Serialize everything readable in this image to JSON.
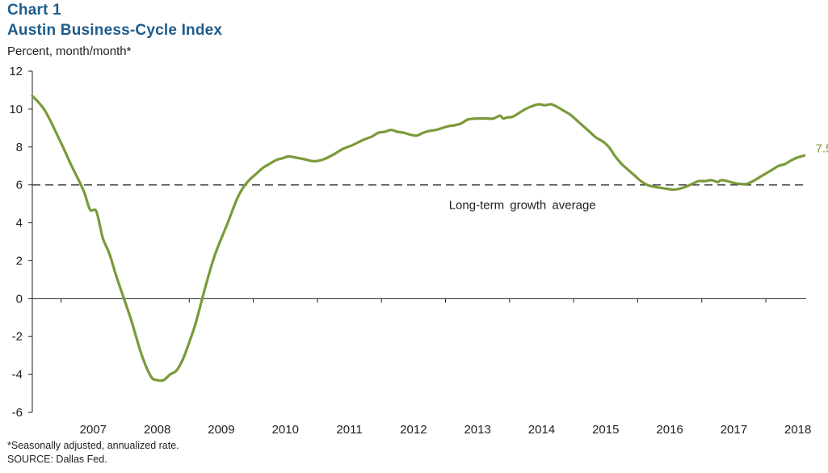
{
  "header": {
    "label": "Chart 1",
    "title": "Austin Business-Cycle Index",
    "units": "Percent, month/month*"
  },
  "footer": {
    "note": "*Seasonally adjusted, annualized rate.",
    "source": "SOURCE:  Dallas Fed."
  },
  "colors": {
    "series": "#7a9a3a",
    "reference": "#404040",
    "title": "#1f5c8b"
  },
  "chart_data": {
    "type": "line",
    "title": "Austin Business-Cycle Index",
    "ylabel": "Percent, month/month*",
    "xlabel": "",
    "ylim": [
      -6,
      12
    ],
    "xlim": [
      2006.55,
      2018.63
    ],
    "yticks": [
      -6,
      -4,
      -2,
      0,
      2,
      4,
      6,
      8,
      10,
      12
    ],
    "year_labels": [
      "2007",
      "2008",
      "2009",
      "2010",
      "2011",
      "2012",
      "2013",
      "2014",
      "2015",
      "2016",
      "2017",
      "2018"
    ],
    "grid": false,
    "series": [
      {
        "name": "Austin Business-Cycle Index",
        "end_label": "7.5",
        "x": [
          2006.55,
          2006.75,
          2007.0,
          2007.15,
          2007.35,
          2007.45,
          2007.55,
          2007.65,
          2007.75,
          2007.85,
          2007.95,
          2008.1,
          2008.25,
          2008.4,
          2008.5,
          2008.6,
          2008.7,
          2008.8,
          2008.9,
          2009.0,
          2009.1,
          2009.25,
          2009.4,
          2009.6,
          2009.75,
          2009.85,
          2009.95,
          2010.05,
          2010.15,
          2010.25,
          2010.35,
          2010.45,
          2010.55,
          2010.65,
          2010.8,
          2010.95,
          2011.1,
          2011.25,
          2011.4,
          2011.55,
          2011.7,
          2011.85,
          2011.95,
          2012.05,
          2012.15,
          2012.25,
          2012.35,
          2012.45,
          2012.55,
          2012.65,
          2012.75,
          2012.85,
          2012.95,
          2013.05,
          2013.15,
          2013.25,
          2013.35,
          2013.5,
          2013.65,
          2013.75,
          2013.85,
          2013.9,
          2013.95,
          2014.05,
          2014.15,
          2014.25,
          2014.35,
          2014.45,
          2014.55,
          2014.65,
          2014.75,
          2014.85,
          2014.95,
          2015.05,
          2015.15,
          2015.25,
          2015.35,
          2015.45,
          2015.55,
          2015.65,
          2015.75,
          2015.85,
          2015.95,
          2016.05,
          2016.15,
          2016.25,
          2016.35,
          2016.45,
          2016.55,
          2016.65,
          2016.75,
          2016.85,
          2016.95,
          2017.05,
          2017.15,
          2017.25,
          2017.3,
          2017.4,
          2017.5,
          2017.6,
          2017.7,
          2017.8,
          2017.9,
          2018.0,
          2018.1,
          2018.2,
          2018.3,
          2018.4,
          2018.5,
          2018.6
        ],
        "values": [
          10.7,
          9.9,
          8.2,
          7.1,
          5.7,
          4.7,
          4.6,
          3.2,
          2.4,
          1.3,
          0.3,
          -1.2,
          -2.9,
          -4.1,
          -4.3,
          -4.3,
          -4.0,
          -3.8,
          -3.2,
          -2.3,
          -1.3,
          0.6,
          2.3,
          4.0,
          5.3,
          5.9,
          6.3,
          6.6,
          6.9,
          7.1,
          7.3,
          7.4,
          7.5,
          7.45,
          7.35,
          7.25,
          7.35,
          7.6,
          7.9,
          8.1,
          8.35,
          8.55,
          8.75,
          8.8,
          8.9,
          8.8,
          8.75,
          8.65,
          8.6,
          8.75,
          8.85,
          8.9,
          9.0,
          9.1,
          9.15,
          9.25,
          9.45,
          9.5,
          9.5,
          9.5,
          9.65,
          9.5,
          9.55,
          9.6,
          9.8,
          10.0,
          10.15,
          10.25,
          10.2,
          10.25,
          10.1,
          9.9,
          9.7,
          9.4,
          9.1,
          8.8,
          8.5,
          8.3,
          8.0,
          7.5,
          7.1,
          6.8,
          6.5,
          6.2,
          6.0,
          5.9,
          5.85,
          5.8,
          5.75,
          5.8,
          5.9,
          6.05,
          6.2,
          6.2,
          6.25,
          6.15,
          6.25,
          6.2,
          6.1,
          6.05,
          6.05,
          6.2,
          6.4,
          6.6,
          6.8,
          7.0,
          7.1,
          7.3,
          7.45,
          7.55
        ]
      }
    ],
    "reference_line": {
      "label": "Long-term growth average",
      "value": 6.0
    }
  }
}
